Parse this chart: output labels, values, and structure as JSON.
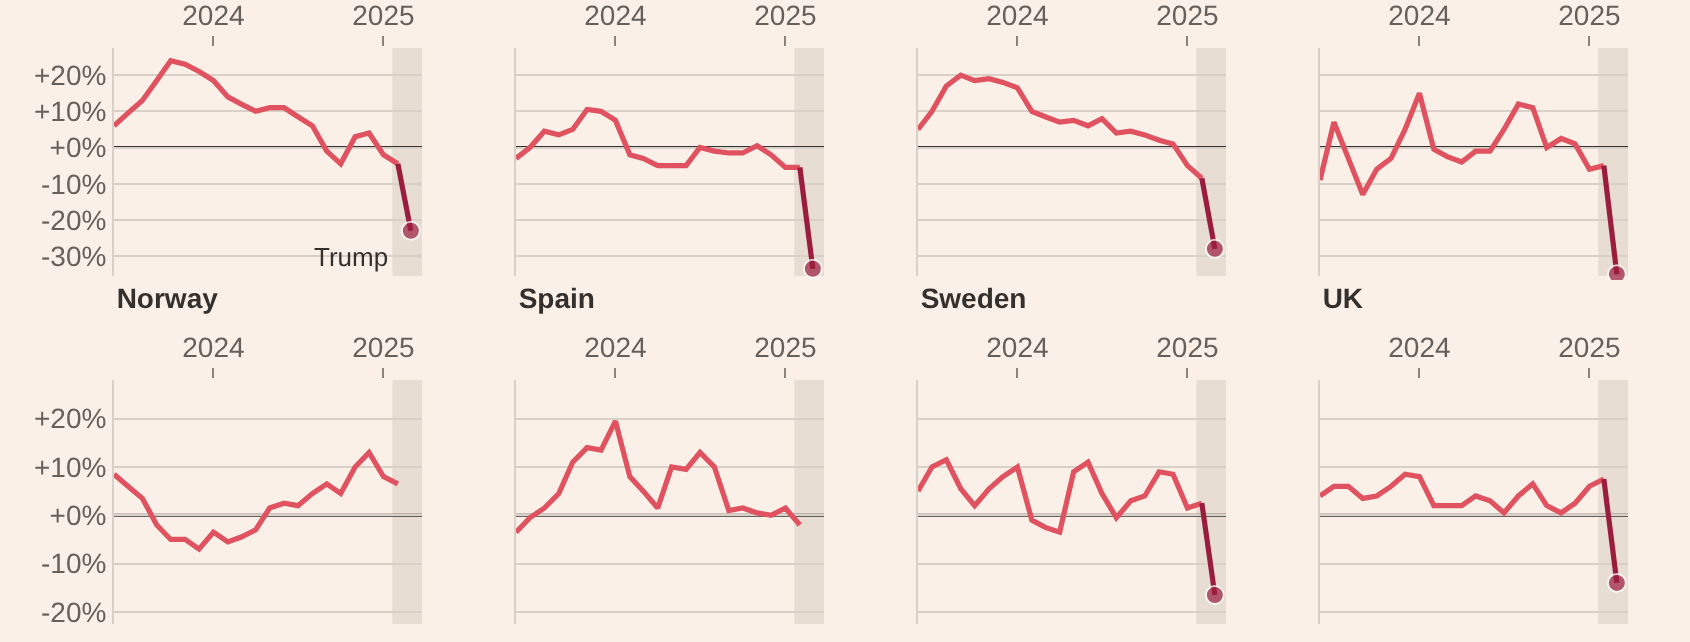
{
  "chart_data": [
    {
      "type": "line",
      "x": [
        "2023-06",
        "2023-07",
        "2023-08",
        "2023-09",
        "2023-10",
        "2023-11",
        "2023-12",
        "2024-01",
        "2024-02",
        "2024-03",
        "2024-04",
        "2024-05",
        "2024-06",
        "2024-07",
        "2024-08",
        "2024-09",
        "2024-10",
        "2024-11",
        "2024-12",
        "2025-01",
        "2025-02",
        "2025-03"
      ],
      "xlim": [
        "2023-06-01",
        "2025-03-25"
      ],
      "xticks": [
        {
          "value": "2024-01-01",
          "label": "2024"
        },
        {
          "value": "2025-01-01",
          "label": "2025"
        }
      ],
      "ylim": [
        -35.5,
        27.5
      ],
      "yticks": [
        {
          "value": 20,
          "label": "+20%"
        },
        {
          "value": 10,
          "label": "+10%"
        },
        {
          "value": 0,
          "label": "+0%"
        },
        {
          "value": -10,
          "label": "-10%"
        },
        {
          "value": -20,
          "label": "-20%"
        },
        {
          "value": -30,
          "label": "-30%"
        }
      ],
      "grid": "y",
      "series": [
        {
          "color": "#e0525f",
          "values": [
            6,
            9.5,
            13,
            18.5,
            24,
            23,
            21,
            18.5,
            14,
            12,
            10,
            11,
            11,
            8.5,
            6,
            -1,
            -4.5,
            3,
            4,
            -2,
            -4.5,
            null
          ]
        },
        {
          "color": "#9b1d3e",
          "marker": "circle",
          "values": [
            null,
            null,
            null,
            null,
            null,
            null,
            null,
            null,
            null,
            null,
            null,
            null,
            null,
            null,
            null,
            null,
            null,
            null,
            null,
            null,
            -4.5,
            -23
          ]
        }
      ],
      "ref_lines": [
        {
          "axis": "y",
          "value": 0,
          "color": "#333333"
        }
      ],
      "bands": [
        {
          "axis": "x",
          "from": "2025-01-20",
          "to": "2025-03-25",
          "label": "Trump",
          "color": "#e8ddd3"
        }
      ]
    },
    {
      "type": "line",
      "x": [
        "2023-06",
        "2023-07",
        "2023-08",
        "2023-09",
        "2023-10",
        "2023-11",
        "2023-12",
        "2024-01",
        "2024-02",
        "2024-03",
        "2024-04",
        "2024-05",
        "2024-06",
        "2024-07",
        "2024-08",
        "2024-09",
        "2024-10",
        "2024-11",
        "2024-12",
        "2025-01",
        "2025-02",
        "2025-03"
      ],
      "xlim": [
        "2023-06-01",
        "2025-03-25"
      ],
      "xticks": [
        {
          "value": "2024-01-01",
          "label": "2024"
        },
        {
          "value": "2025-01-01",
          "label": "2025"
        }
      ],
      "ylim": [
        -35.5,
        27.5
      ],
      "yticks": [
        20,
        10,
        0,
        -10,
        -20,
        -30
      ],
      "grid": "y",
      "tick_labels": "x",
      "series": [
        {
          "color": "#e0525f",
          "values": [
            -3,
            0,
            4.5,
            3.5,
            5,
            10.5,
            10,
            7.5,
            -2,
            -3,
            -5,
            -5,
            -5,
            0,
            -1,
            -1.5,
            -1.5,
            0.5,
            -2,
            -5.5,
            -5.5,
            null
          ]
        },
        {
          "color": "#9b1d3e",
          "marker": "circle",
          "values": [
            null,
            null,
            null,
            null,
            null,
            null,
            null,
            null,
            null,
            null,
            null,
            null,
            null,
            null,
            null,
            null,
            null,
            null,
            null,
            null,
            -5.5,
            -33.5
          ]
        }
      ],
      "ref_lines": [
        {
          "axis": "y",
          "value": 0,
          "color": "#333333"
        }
      ],
      "bands": [
        {
          "axis": "x",
          "from": "2025-01-20",
          "to": "2025-03-25",
          "color": "#e8ddd3"
        }
      ]
    },
    {
      "type": "line",
      "x": [
        "2023-06",
        "2023-07",
        "2023-08",
        "2023-09",
        "2023-10",
        "2023-11",
        "2023-12",
        "2024-01",
        "2024-02",
        "2024-03",
        "2024-04",
        "2024-05",
        "2024-06",
        "2024-07",
        "2024-08",
        "2024-09",
        "2024-10",
        "2024-11",
        "2024-12",
        "2025-01",
        "2025-02",
        "2025-03"
      ],
      "xlim": [
        "2023-06-01",
        "2025-03-25"
      ],
      "xticks": [
        {
          "value": "2024-01-01",
          "label": "2024"
        },
        {
          "value": "2025-01-01",
          "label": "2025"
        }
      ],
      "ylim": [
        -35.5,
        27.5
      ],
      "yticks": [
        20,
        10,
        0,
        -10,
        -20,
        -30
      ],
      "grid": "y",
      "tick_labels": "x",
      "series": [
        {
          "color": "#e0525f",
          "values": [
            5,
            10,
            17,
            20,
            18.5,
            19,
            18,
            16.5,
            10,
            8.5,
            7,
            7.5,
            6,
            8,
            4,
            4.5,
            3.5,
            2,
            1,
            -5,
            -8.5,
            null
          ]
        },
        {
          "color": "#9b1d3e",
          "marker": "circle",
          "values": [
            null,
            null,
            null,
            null,
            null,
            null,
            null,
            null,
            null,
            null,
            null,
            null,
            null,
            null,
            null,
            null,
            null,
            null,
            null,
            null,
            -8.5,
            -28
          ]
        }
      ],
      "ref_lines": [
        {
          "axis": "y",
          "value": 0,
          "color": "#333333"
        }
      ],
      "bands": [
        {
          "axis": "x",
          "from": "2025-01-20",
          "to": "2025-03-25",
          "color": "#e8ddd3"
        }
      ]
    },
    {
      "type": "line",
      "x": [
        "2023-06",
        "2023-07",
        "2023-08",
        "2023-09",
        "2023-10",
        "2023-11",
        "2023-12",
        "2024-01",
        "2024-02",
        "2024-03",
        "2024-04",
        "2024-05",
        "2024-06",
        "2024-07",
        "2024-08",
        "2024-09",
        "2024-10",
        "2024-11",
        "2024-12",
        "2025-01",
        "2025-02",
        "2025-03"
      ],
      "xlim": [
        "2023-06-01",
        "2025-03-25"
      ],
      "xticks": [
        {
          "value": "2024-01-01",
          "label": "2024"
        },
        {
          "value": "2025-01-01",
          "label": "2025"
        }
      ],
      "ylim": [
        -35.5,
        27.5
      ],
      "yticks": [
        20,
        10,
        0,
        -10,
        -20,
        -30
      ],
      "grid": "y",
      "tick_labels": "x",
      "series": [
        {
          "color": "#e0525f",
          "values": [
            -9,
            7,
            -3,
            -13,
            -6,
            -3,
            5,
            15,
            -0.5,
            -2.5,
            -4,
            -1,
            -1,
            5,
            12,
            11,
            0,
            2.5,
            1,
            -6,
            -5,
            null
          ]
        },
        {
          "color": "#9b1d3e",
          "marker": "circle",
          "values": [
            null,
            null,
            null,
            null,
            null,
            null,
            null,
            null,
            null,
            null,
            null,
            null,
            null,
            null,
            null,
            null,
            null,
            null,
            null,
            null,
            -5,
            -35
          ]
        }
      ],
      "ref_lines": [
        {
          "axis": "y",
          "value": 0,
          "color": "#333333"
        }
      ],
      "bands": [
        {
          "axis": "x",
          "from": "2025-01-20",
          "to": "2025-03-25",
          "color": "#e8ddd3"
        }
      ]
    },
    {
      "type": "line",
      "title": "Norway",
      "xlim": [
        "2023-06-01",
        "2025-03-25"
      ],
      "xticks": [
        {
          "value": "2024-01-01",
          "label": "2024"
        },
        {
          "value": "2025-01-01",
          "label": "2025"
        }
      ],
      "ylim": [
        -22.5,
        28
      ],
      "yticks": [
        {
          "value": 20,
          "label": "+20%"
        },
        {
          "value": 10,
          "label": "+10%"
        },
        {
          "value": 0,
          "label": "+0%"
        },
        {
          "value": -10,
          "label": "-10%"
        },
        {
          "value": -20,
          "label": "-20%"
        }
      ],
      "grid": "y",
      "series": [
        {
          "color": "#e0525f",
          "x": [
            "2023-06",
            "2023-07",
            "2023-08",
            "2023-09",
            "2023-10",
            "2023-11",
            "2023-12",
            "2024-01",
            "2024-02",
            "2024-03",
            "2024-04",
            "2024-05",
            "2024-06",
            "2024-07",
            "2024-08",
            "2024-09",
            "2024-10",
            "2024-11",
            "2024-12",
            "2025-01",
            "2025-02"
          ],
          "values": [
            8.5,
            6,
            3.5,
            -2,
            -5,
            -5,
            -7,
            -3.5,
            -5.5,
            -4.5,
            -3,
            1.5,
            2.5,
            2,
            4.5,
            6.5,
            4.5,
            10,
            13,
            8,
            6.5
          ]
        }
      ],
      "ref_lines": [
        {
          "axis": "y",
          "value": 0,
          "color": "#333333"
        }
      ],
      "bands": [
        {
          "axis": "x",
          "from": "2025-01-20",
          "to": "2025-03-25",
          "color": "#e8ddd3"
        }
      ]
    },
    {
      "type": "line",
      "title": "Spain",
      "xlim": [
        "2023-06-01",
        "2025-03-25"
      ],
      "xticks": [
        {
          "value": "2024-01-01",
          "label": "2024"
        },
        {
          "value": "2025-01-01",
          "label": "2025"
        }
      ],
      "ylim": [
        -22.5,
        28
      ],
      "yticks": [
        20,
        10,
        0,
        -10,
        -20
      ],
      "grid": "y",
      "tick_labels": "x",
      "series": [
        {
          "color": "#e0525f",
          "x": [
            "2023-06",
            "2023-07",
            "2023-08",
            "2023-09",
            "2023-10",
            "2023-11",
            "2023-12",
            "2024-01",
            "2024-02",
            "2024-03",
            "2024-04",
            "2024-05",
            "2024-06",
            "2024-07",
            "2024-08",
            "2024-09",
            "2024-10",
            "2024-11",
            "2024-12",
            "2025-01",
            "2025-02"
          ],
          "values": [
            -3.5,
            -0.5,
            1.5,
            4.5,
            11,
            14,
            13.5,
            19.5,
            8,
            5,
            1.5,
            10,
            9.5,
            13,
            10,
            1,
            1.5,
            0.5,
            0,
            1.5,
            -2
          ]
        }
      ],
      "ref_lines": [
        {
          "axis": "y",
          "value": 0,
          "color": "#333333"
        }
      ],
      "bands": [
        {
          "axis": "x",
          "from": "2025-01-20",
          "to": "2025-03-25",
          "color": "#e8ddd3"
        }
      ]
    },
    {
      "type": "line",
      "title": "Sweden",
      "x": [
        "2023-06",
        "2023-07",
        "2023-08",
        "2023-09",
        "2023-10",
        "2023-11",
        "2023-12",
        "2024-01",
        "2024-02",
        "2024-03",
        "2024-04",
        "2024-05",
        "2024-06",
        "2024-07",
        "2024-08",
        "2024-09",
        "2024-10",
        "2024-11",
        "2024-12",
        "2025-01",
        "2025-02",
        "2025-03"
      ],
      "xlim": [
        "2023-06-01",
        "2025-03-25"
      ],
      "xticks": [
        {
          "value": "2024-01-01",
          "label": "2024"
        },
        {
          "value": "2025-01-01",
          "label": "2025"
        }
      ],
      "ylim": [
        -22.5,
        28
      ],
      "yticks": [
        20,
        10,
        0,
        -10,
        -20
      ],
      "grid": "y",
      "tick_labels": "x",
      "series": [
        {
          "color": "#e0525f",
          "values": [
            5,
            10,
            11.5,
            5.5,
            2,
            5.5,
            8,
            10,
            -1,
            -2.5,
            -3.5,
            9,
            11,
            4.5,
            -0.5,
            3,
            4,
            9,
            8.5,
            1.5,
            2.5,
            null
          ]
        },
        {
          "color": "#9b1d3e",
          "marker": "circle",
          "values": [
            null,
            null,
            null,
            null,
            null,
            null,
            null,
            null,
            null,
            null,
            null,
            null,
            null,
            null,
            null,
            null,
            null,
            null,
            null,
            null,
            2.5,
            -16.5
          ]
        }
      ],
      "ref_lines": [
        {
          "axis": "y",
          "value": 0,
          "color": "#333333"
        }
      ],
      "bands": [
        {
          "axis": "x",
          "from": "2025-01-20",
          "to": "2025-03-25",
          "color": "#e8ddd3"
        }
      ]
    },
    {
      "type": "line",
      "title": "UK",
      "x": [
        "2023-06",
        "2023-07",
        "2023-08",
        "2023-09",
        "2023-10",
        "2023-11",
        "2023-12",
        "2024-01",
        "2024-02",
        "2024-03",
        "2024-04",
        "2024-05",
        "2024-06",
        "2024-07",
        "2024-08",
        "2024-09",
        "2024-10",
        "2024-11",
        "2024-12",
        "2025-01",
        "2025-02",
        "2025-03"
      ],
      "xlim": [
        "2023-06-01",
        "2025-03-25"
      ],
      "xticks": [
        {
          "value": "2024-01-01",
          "label": "2024"
        },
        {
          "value": "2025-01-01",
          "label": "2025"
        }
      ],
      "ylim": [
        -22.5,
        28
      ],
      "yticks": [
        20,
        10,
        0,
        -10,
        -20
      ],
      "grid": "y",
      "tick_labels": "x",
      "series": [
        {
          "color": "#e0525f",
          "values": [
            4,
            6,
            6,
            3.5,
            4,
            6,
            8.5,
            8,
            2,
            2,
            2,
            4,
            3,
            0.5,
            4,
            6.5,
            2,
            0.5,
            2.5,
            6,
            7.5,
            null
          ]
        },
        {
          "color": "#9b1d3e",
          "marker": "circle",
          "values": [
            null,
            null,
            null,
            null,
            null,
            null,
            null,
            null,
            null,
            null,
            null,
            null,
            null,
            null,
            null,
            null,
            null,
            null,
            null,
            null,
            7.5,
            -14
          ]
        }
      ],
      "ref_lines": [
        {
          "axis": "y",
          "value": 0,
          "color": "#333333"
        }
      ],
      "bands": [
        {
          "axis": "x",
          "from": "2025-01-20",
          "to": "2025-03-25",
          "color": "#e8ddd3"
        }
      ]
    }
  ]
}
